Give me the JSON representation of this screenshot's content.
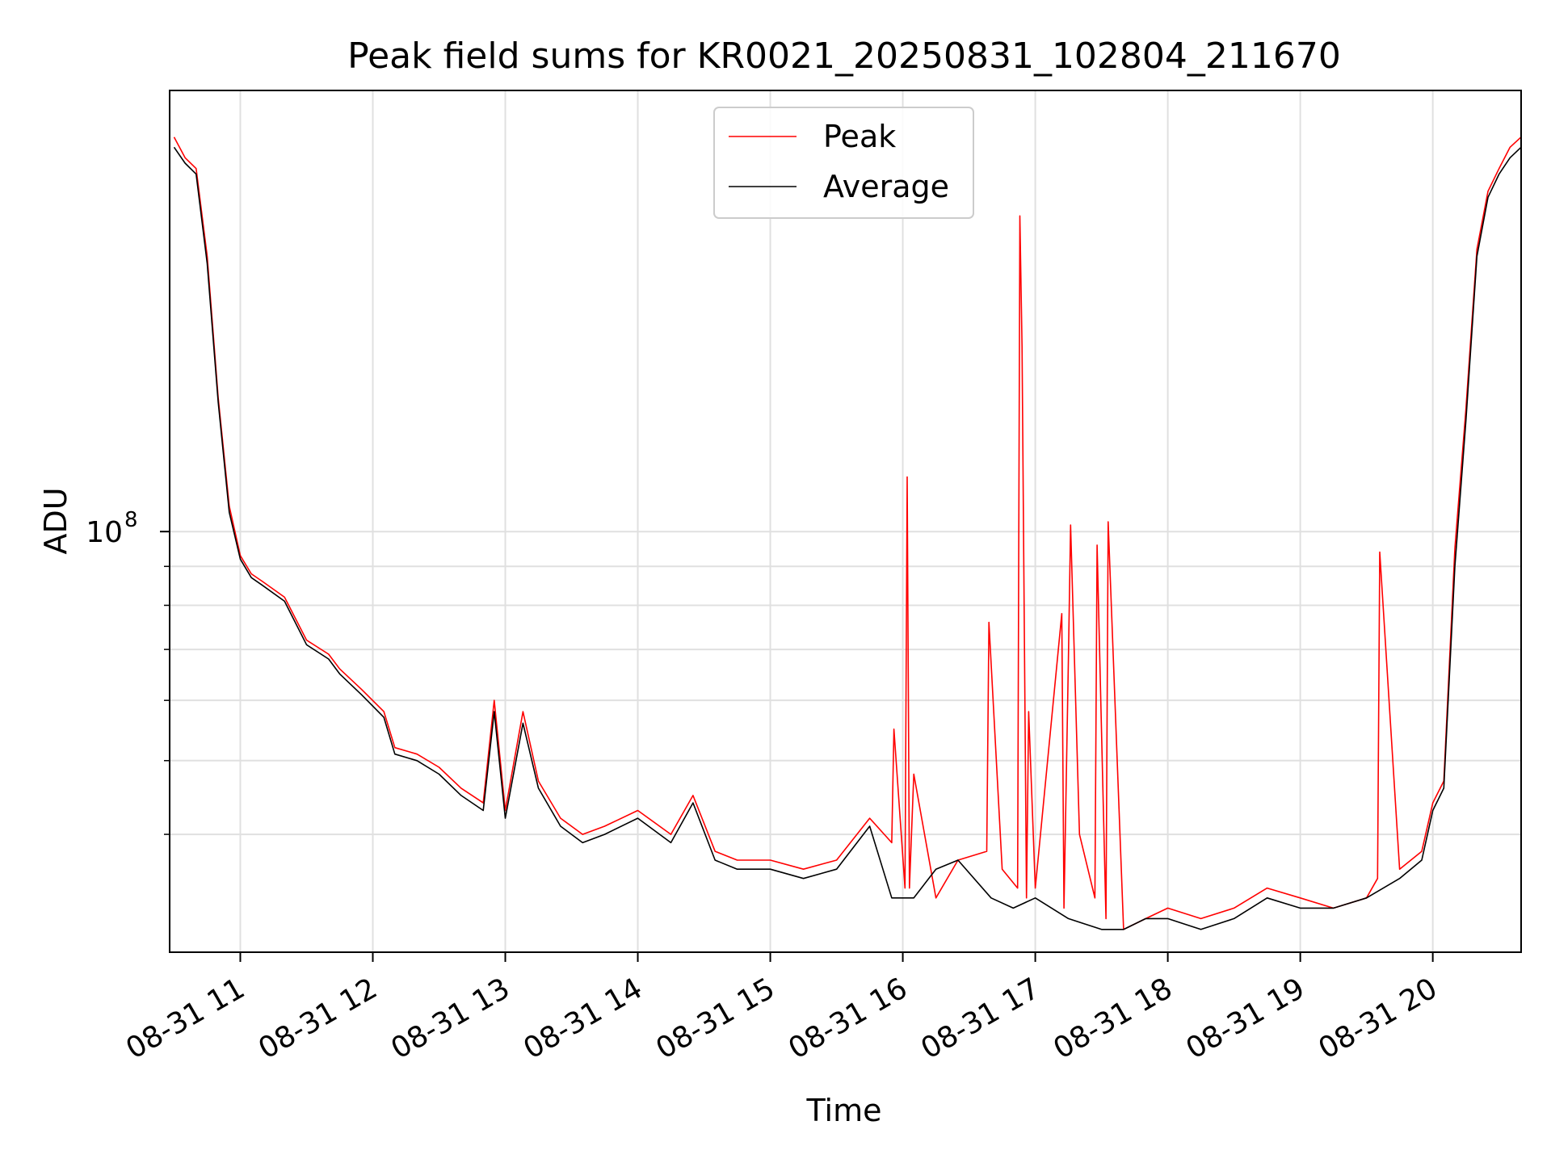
{
  "chart_data": {
    "type": "line",
    "title": "Peak field sums for KR0021_20250831_102804_211670",
    "xlabel": "Time",
    "ylabel": "ADU",
    "y_scale": "log",
    "ylim": [
      28000000,
      380000000
    ],
    "xlim": [
      "08-31 10:28",
      "08-31 20:40"
    ],
    "x_ticks": [
      "08-31 11",
      "08-31 12",
      "08-31 13",
      "08-31 14",
      "08-31 15",
      "08-31 16",
      "08-31 17",
      "08-31 18",
      "08-31 19",
      "08-31 20"
    ],
    "y_major_ticks": [
      {
        "value": 100000000,
        "base": "10",
        "exponent": "8"
      }
    ],
    "y_minor_ticks": [
      40000000,
      50000000,
      60000000,
      70000000,
      80000000,
      90000000
    ],
    "grid": true,
    "legend_position": "upper center",
    "series": [
      {
        "name": "Peak",
        "color": "#ff0000",
        "x": [
          "08-31 10:30",
          "08-31 10:35",
          "08-31 10:40",
          "08-31 10:45",
          "08-31 10:50",
          "08-31 10:55",
          "08-31 11:00",
          "08-31 11:05",
          "08-31 11:10",
          "08-31 11:20",
          "08-31 11:30",
          "08-31 11:40",
          "08-31 11:45",
          "08-31 11:55",
          "08-31 12:05",
          "08-31 12:10",
          "08-31 12:20",
          "08-31 12:30",
          "08-31 12:40",
          "08-31 12:50",
          "08-31 12:55",
          "08-31 13:00",
          "08-31 13:08",
          "08-31 13:15",
          "08-31 13:25",
          "08-31 13:35",
          "08-31 13:45",
          "08-31 14:00",
          "08-31 14:15",
          "08-31 14:25",
          "08-31 14:35",
          "08-31 14:45",
          "08-31 15:00",
          "08-31 15:15",
          "08-31 15:30",
          "08-31 15:45",
          "08-31 15:55",
          "08-31 15:56",
          "08-31 16:01",
          "08-31 16:02",
          "08-31 16:03",
          "08-31 16:05",
          "08-31 16:15",
          "08-31 16:25",
          "08-31 16:38",
          "08-31 16:39",
          "08-31 16:45",
          "08-31 16:52",
          "08-31 16:53",
          "08-31 16:54",
          "08-31 16:56",
          "08-31 16:57",
          "08-31 17:00",
          "08-31 17:12",
          "08-31 17:13",
          "08-31 17:15",
          "08-31 17:16",
          "08-31 17:20",
          "08-31 17:27",
          "08-31 17:28",
          "08-31 17:32",
          "08-31 17:33",
          "08-31 17:40",
          "08-31 17:50",
          "08-31 18:00",
          "08-31 18:15",
          "08-31 18:30",
          "08-31 18:45",
          "08-31 19:00",
          "08-31 19:15",
          "08-31 19:30",
          "08-31 19:35",
          "08-31 19:36",
          "08-31 19:45",
          "08-31 19:55",
          "08-31 20:00",
          "08-31 20:05",
          "08-31 20:10",
          "08-31 20:15",
          "08-31 20:20",
          "08-31 20:25",
          "08-31 20:30",
          "08-31 20:35",
          "08-31 20:40"
        ],
        "y": [
          330000000,
          310000000,
          300000000,
          230000000,
          150000000,
          108000000,
          93000000,
          88000000,
          86000000,
          82000000,
          72000000,
          69000000,
          66000000,
          62000000,
          58000000,
          52000000,
          51000000,
          49000000,
          46000000,
          44000000,
          60000000,
          43000000,
          58000000,
          47000000,
          42000000,
          40000000,
          41000000,
          43000000,
          40000000,
          45000000,
          38000000,
          37000000,
          37000000,
          36000000,
          37000000,
          42000000,
          39000000,
          55000000,
          34000000,
          118000000,
          34000000,
          48000000,
          33000000,
          37000000,
          38000000,
          76000000,
          36000000,
          34000000,
          260000000,
          175000000,
          33000000,
          58000000,
          34000000,
          78000000,
          32000000,
          68000000,
          102000000,
          40000000,
          33000000,
          96000000,
          31000000,
          103000000,
          30000000,
          31000000,
          32000000,
          31000000,
          32000000,
          34000000,
          33000000,
          32000000,
          33000000,
          35000000,
          94000000,
          36000000,
          38000000,
          44000000,
          47000000,
          95000000,
          145000000,
          235000000,
          280000000,
          300000000,
          320000000,
          330000000
        ]
      },
      {
        "name": "Average",
        "color": "#000000",
        "x": [
          "08-31 10:30",
          "08-31 10:35",
          "08-31 10:40",
          "08-31 10:45",
          "08-31 10:50",
          "08-31 10:55",
          "08-31 11:00",
          "08-31 11:05",
          "08-31 11:10",
          "08-31 11:20",
          "08-31 11:30",
          "08-31 11:40",
          "08-31 11:45",
          "08-31 11:55",
          "08-31 12:05",
          "08-31 12:10",
          "08-31 12:20",
          "08-31 12:30",
          "08-31 12:40",
          "08-31 12:50",
          "08-31 12:55",
          "08-31 13:00",
          "08-31 13:08",
          "08-31 13:15",
          "08-31 13:25",
          "08-31 13:35",
          "08-31 13:45",
          "08-31 14:00",
          "08-31 14:15",
          "08-31 14:25",
          "08-31 14:35",
          "08-31 14:45",
          "08-31 15:00",
          "08-31 15:15",
          "08-31 15:30",
          "08-31 15:45",
          "08-31 15:55",
          "08-31 16:05",
          "08-31 16:15",
          "08-31 16:25",
          "08-31 16:40",
          "08-31 16:50",
          "08-31 17:00",
          "08-31 17:15",
          "08-31 17:30",
          "08-31 17:40",
          "08-31 17:50",
          "08-31 18:00",
          "08-31 18:15",
          "08-31 18:30",
          "08-31 18:45",
          "08-31 19:00",
          "08-31 19:15",
          "08-31 19:30",
          "08-31 19:45",
          "08-31 19:55",
          "08-31 20:00",
          "08-31 20:05",
          "08-31 20:10",
          "08-31 20:15",
          "08-31 20:20",
          "08-31 20:25",
          "08-31 20:30",
          "08-31 20:35",
          "08-31 20:40"
        ],
        "y": [
          320000000,
          305000000,
          295000000,
          225000000,
          148000000,
          106000000,
          92000000,
          87000000,
          85000000,
          81000000,
          71000000,
          68000000,
          65000000,
          61000000,
          57000000,
          51000000,
          50000000,
          48000000,
          45000000,
          43000000,
          58000000,
          42000000,
          56000000,
          46000000,
          41000000,
          39000000,
          40000000,
          42000000,
          39000000,
          44000000,
          37000000,
          36000000,
          36000000,
          35000000,
          36000000,
          41000000,
          33000000,
          33000000,
          36000000,
          37000000,
          33000000,
          32000000,
          33000000,
          31000000,
          30000000,
          30000000,
          31000000,
          31000000,
          30000000,
          31000000,
          33000000,
          32000000,
          32000000,
          33000000,
          35000000,
          37000000,
          43000000,
          46000000,
          90000000,
          140000000,
          230000000,
          275000000,
          295000000,
          310000000,
          320000000
        ]
      }
    ]
  }
}
